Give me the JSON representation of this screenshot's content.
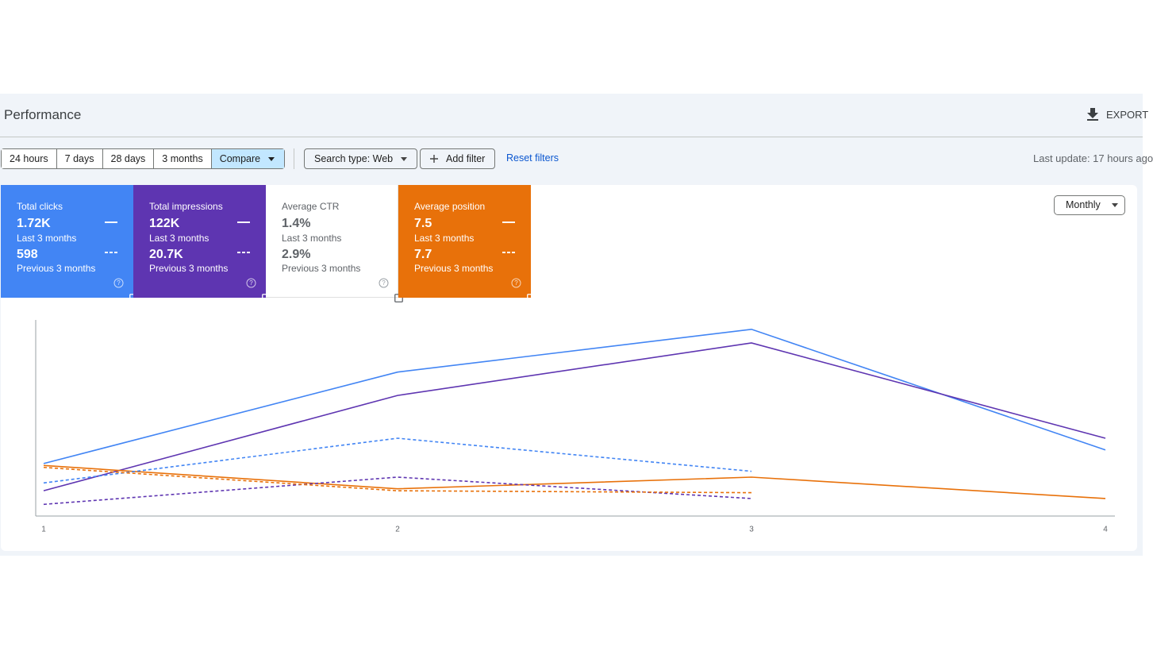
{
  "header": {
    "title": "Performance",
    "export": "EXPORT"
  },
  "filters": {
    "ranges": [
      "24 hours",
      "7 days",
      "28 days",
      "3 months",
      "Compare"
    ],
    "selected": 4,
    "search_type": "Search type: Web",
    "add_filter": "Add filter",
    "reset": "Reset filters",
    "last_update": "Last update: 17 hours ago"
  },
  "cards": [
    {
      "label": "Total clicks",
      "checked": true,
      "color": "#4285f4",
      "current": "1.72K",
      "current_period": "Last 3 months",
      "previous": "598",
      "previous_period": "Previous 3 months"
    },
    {
      "label": "Total impressions",
      "checked": true,
      "color": "#5e35b1",
      "current": "122K",
      "current_period": "Last 3 months",
      "previous": "20.7K",
      "previous_period": "Previous 3 months"
    },
    {
      "label": "Average CTR",
      "checked": false,
      "color": "#ffffff",
      "current": "1.4%",
      "current_period": "Last 3 months",
      "previous": "2.9%",
      "previous_period": "Previous 3 months"
    },
    {
      "label": "Average position",
      "checked": true,
      "color": "#e8710a",
      "current": "7.5",
      "current_period": "Last 3 months",
      "previous": "7.7",
      "previous_period": "Previous 3 months"
    }
  ],
  "granularity": "Monthly",
  "chart_data": {
    "type": "line",
    "x": [
      1,
      2,
      3,
      4
    ],
    "xlim": [
      1,
      4
    ],
    "xticks": [
      1,
      2,
      3,
      4
    ],
    "ylim": [
      0,
      100
    ],
    "series": [
      {
        "color": "#4285f4",
        "dashed": false,
        "values": [
          27,
          74,
          96,
          34
        ]
      },
      {
        "color": "#5e35b1",
        "dashed": false,
        "values": [
          13,
          62,
          89,
          40
        ]
      },
      {
        "color": "#e8710a",
        "dashed": false,
        "values": [
          26,
          14,
          20,
          9
        ]
      },
      {
        "color": "#4285f4",
        "dashed": true,
        "values": [
          17,
          40,
          23,
          null
        ]
      },
      {
        "color": "#5e35b1",
        "dashed": true,
        "values": [
          6,
          20,
          9,
          null
        ]
      },
      {
        "color": "#e8710a",
        "dashed": true,
        "values": [
          25,
          13,
          12,
          null
        ]
      }
    ]
  }
}
